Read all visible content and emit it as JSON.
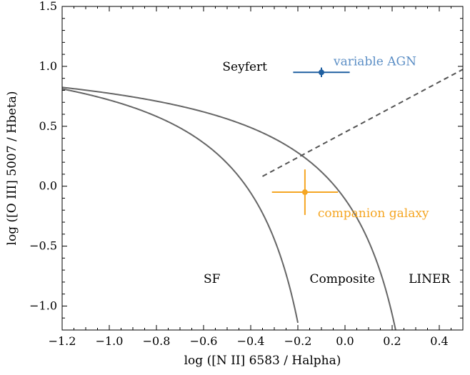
{
  "chart_data": {
    "type": "scatter",
    "title": "",
    "xlabel": "log ([N II] 6583 / Halpha)",
    "ylabel": "log ([O III] 5007 / Hbeta)",
    "xlim": [
      -1.2,
      0.5
    ],
    "ylim": [
      -1.2,
      1.5
    ],
    "x_ticks": [
      -1.2,
      -1.0,
      -0.8,
      -0.6,
      -0.4,
      -0.2,
      0.0,
      0.2,
      0.4
    ],
    "x_tick_labels": [
      "−1.2",
      "−1.0",
      "−0.8",
      "−0.6",
      "−0.4",
      "−0.2",
      "0.0",
      "0.2",
      "0.4"
    ],
    "y_ticks": [
      -1.0,
      -0.5,
      0.0,
      0.5,
      1.0,
      1.5
    ],
    "y_tick_labels": [
      "−1.0",
      "−0.5",
      "0.0",
      "0.5",
      "1.0",
      "1.5"
    ],
    "grid": false,
    "curves": [
      {
        "kind": "kauffmann",
        "formula": "0.61/(x-0.05)+1.3",
        "x_range": [
          -1.2,
          -0.2
        ],
        "color": "#666666",
        "style": "solid"
      },
      {
        "kind": "kewley",
        "formula": "0.61/(x-0.47)+1.19",
        "x_range": [
          -1.2,
          0.22
        ],
        "color": "#666666",
        "style": "solid"
      },
      {
        "kind": "seyfert-liner",
        "formula": "1.05*x+0.45",
        "x_range": [
          -0.35,
          0.5
        ],
        "color": "#555555",
        "style": "dashed"
      }
    ],
    "points": [
      {
        "label": "variable AGN",
        "x": -0.1,
        "y": 0.95,
        "xerr": 0.12,
        "yerr": 0.04,
        "color": "#1f5fa0",
        "label_color": "#5b8ec5"
      },
      {
        "label": "companion galaxy",
        "x": -0.17,
        "y": -0.05,
        "xerr": 0.14,
        "yerr": 0.19,
        "color": "#f5a623",
        "label_color": "#f5a623"
      }
    ],
    "region_labels": [
      {
        "text": "Seyfert",
        "x": -0.52,
        "y": 1.0
      },
      {
        "text": "SF",
        "x": -0.6,
        "y": -0.77
      },
      {
        "text": "Composite",
        "x": -0.15,
        "y": -0.77
      },
      {
        "text": "LINER",
        "x": 0.27,
        "y": -0.77
      }
    ]
  }
}
